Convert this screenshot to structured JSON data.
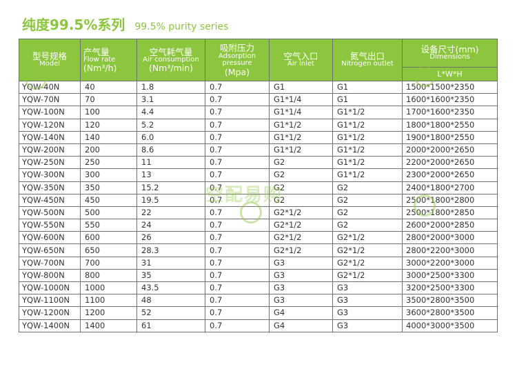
{
  "title": {
    "cn": "纯度99.5%系列",
    "en": "99.5% purity series"
  },
  "headers": {
    "model": {
      "cn": "型号规格",
      "en": "Model"
    },
    "flow": {
      "cn": "产气量",
      "en": "Flow rate",
      "unit": "(Nm³/h)"
    },
    "air": {
      "cn": "空气耗气量",
      "en": "Air consumption",
      "unit": "(Nm³/min)"
    },
    "pressure": {
      "cn": "吸附压力",
      "en": "Adsorption pressure",
      "unit": "(Mpa)"
    },
    "inlet": {
      "cn": "空气入口",
      "en": "Air inlet"
    },
    "outlet": {
      "cn": "氮气出口",
      "en": "Nitrogen outlet"
    },
    "dims": {
      "cn": "设备尺寸(mm)",
      "en": "Dimensions",
      "sub": "L*W*H"
    }
  },
  "rows": [
    [
      "YQW-40N",
      "40",
      "1.8",
      "0.7",
      "G1",
      "G1",
      "1500*1500*2350"
    ],
    [
      "YQW-70N",
      "70",
      "3.1",
      "0.7",
      "G1*1/4",
      "G1",
      "1600*1600*2350"
    ],
    [
      "YQW-100N",
      "100",
      "4.4",
      "0.7",
      "G1*1/4",
      "G1*1/2",
      "1700*1600*2350"
    ],
    [
      "YQW-120N",
      "120",
      "5.2",
      "0.7",
      "G1*1/2",
      "G1*1/2",
      "1800*1800*2550"
    ],
    [
      "YQW-140N",
      "140",
      "6.0",
      "0.7",
      "G1*1/2",
      "G1*1/2",
      "1900*1800*2550"
    ],
    [
      "YQW-200N",
      "200",
      "8.6",
      "0.7",
      "G1*1/2",
      "G1*1/2",
      "2000*2000*2650"
    ],
    [
      "YQW-250N",
      "250",
      "11",
      "0.7",
      "G2",
      "G1*1/2",
      "2200*2000*2650"
    ],
    [
      "YQW-300N",
      "300",
      "13",
      "0.7",
      "G2",
      "G1*1/2",
      "2300*2000*2650"
    ],
    [
      "YQW-350N",
      "350",
      "15.2",
      "0.7",
      "G2",
      "G2",
      "2400*1800*2700"
    ],
    [
      "YQW-450N",
      "450",
      "19.5",
      "0.7",
      "G2",
      "G2",
      "2500*1800*2800"
    ],
    [
      "YQW-500N",
      "500",
      "22",
      "0.7",
      "G2*1/2",
      "G2",
      "2500*1800*2850"
    ],
    [
      "YQW-550N",
      "550",
      "24",
      "0.7",
      "G2*1/2",
      "G2",
      "2600*2000*2850"
    ],
    [
      "YQW-600N",
      "600",
      "26",
      "0.7",
      "G2*1/2",
      "G2*1/2",
      "2800*2000*3000"
    ],
    [
      "YQW-650N",
      "650",
      "28.3",
      "0.7",
      "G2*1/2",
      "G2*1/2",
      "2800*2200*3000"
    ],
    [
      "YQW-700N",
      "700",
      "31",
      "0.7",
      "G3",
      "G2*1/2",
      "3000*2200*3000"
    ],
    [
      "YQW-800N",
      "800",
      "35",
      "0.7",
      "G3",
      "G2*1/2",
      "3000*2500*3300"
    ],
    [
      "YQW-1000N",
      "1000",
      "43.5",
      "0.7",
      "G3",
      "G3",
      "3200*2500*3300"
    ],
    [
      "YQW-1100N",
      "1100",
      "48",
      "0.7",
      "G3",
      "G3",
      "3500*2800*3500"
    ],
    [
      "YQW-1200N",
      "1200",
      "52",
      "0.7",
      "G4",
      "G3",
      "3600*2800*3500"
    ],
    [
      "YQW-1400N",
      "1400",
      "61",
      "0.7",
      "G4",
      "G3",
      "4000*3000*3500"
    ]
  ],
  "watermark": {
    "text": "空配易购",
    "brand_color": "#8cc63e"
  }
}
